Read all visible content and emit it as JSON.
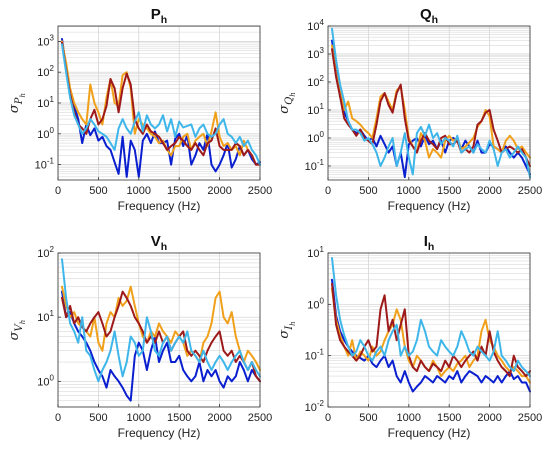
{
  "figure": {
    "panels_order": [
      "P",
      "Q",
      "V",
      "I"
    ]
  },
  "chart_data": [
    {
      "id": "P",
      "type": "line",
      "title": "P",
      "title_sub": "h",
      "ylabel": "σ",
      "ylabel_sub": "P",
      "ylabel_subsub": "h",
      "xlabel": "Frequency (Hz)",
      "xlim": [
        0,
        2500
      ],
      "ylim_log10": [
        -1.5,
        3.5
      ],
      "yscale": "log",
      "xticks": [
        0,
        500,
        1000,
        1500,
        2000,
        2500
      ],
      "ytick_exps": [
        -1,
        0,
        1,
        2,
        3
      ],
      "grid": true,
      "x": [
        50,
        100,
        150,
        200,
        250,
        300,
        350,
        400,
        450,
        500,
        550,
        600,
        650,
        700,
        750,
        800,
        850,
        900,
        950,
        1000,
        1050,
        1100,
        1150,
        1200,
        1250,
        1300,
        1350,
        1400,
        1450,
        1500,
        1550,
        1600,
        1650,
        1700,
        1750,
        1800,
        1850,
        1900,
        1950,
        2000,
        2050,
        2100,
        2150,
        2200,
        2250,
        2300,
        2350,
        2400,
        2450,
        2500
      ],
      "series": [
        {
          "color": "#0a1fcf",
          "values": [
            1200,
            150,
            20,
            8,
            3,
            0.5,
            2,
            0.9,
            1.5,
            0.6,
            0.8,
            0.4,
            0.3,
            0.12,
            0.05,
            0.8,
            0.04,
            0.6,
            0.3,
            0.04,
            0.6,
            1.0,
            0.5,
            1.2,
            0.5,
            0.5,
            0.6,
            0.1,
            0.7,
            1.0,
            0.4,
            0.9,
            0.1,
            0.2,
            0.5,
            0.3,
            1.0,
            0.1,
            0.06,
            0.1,
            0.2,
            0.5,
            0.08,
            0.15,
            0.4,
            0.2,
            0.3,
            0.15,
            0.1,
            0.12
          ]
        },
        {
          "color": "#f0a01a",
          "values": [
            1000,
            200,
            30,
            10,
            5,
            3,
            2,
            40,
            10,
            5,
            2,
            15,
            60,
            10,
            8,
            80,
            100,
            30,
            1.0,
            3,
            2.0,
            1.5,
            1.0,
            0.8,
            0.5,
            0.6,
            0.3,
            0.2,
            0.4,
            0.4,
            0.8,
            1.0,
            0.3,
            0.6,
            0.8,
            1.0,
            0.4,
            1.2,
            5,
            0.8,
            0.4,
            0.5,
            0.3,
            0.4,
            0.2,
            0.6,
            0.3,
            0.2,
            0.1,
            0.1
          ]
        },
        {
          "color": "#9e1a1a",
          "values": [
            900,
            120,
            20,
            5,
            2,
            1.5,
            1,
            3,
            6,
            2,
            3,
            8,
            60,
            30,
            5,
            30,
            90,
            40,
            3,
            1.5,
            1.0,
            2.0,
            1.2,
            1.0,
            0.8,
            0.5,
            0.3,
            0.4,
            0.5,
            0.8,
            0.6,
            0.4,
            0.3,
            0.5,
            0.3,
            0.2,
            0.5,
            0.6,
            1.5,
            0.4,
            0.3,
            0.3,
            0.3,
            0.5,
            0.4,
            0.2,
            0.3,
            0.2,
            0.1,
            0.1
          ]
        },
        {
          "color": "#3fb6ea",
          "values": [
            800,
            100,
            15,
            4,
            2,
            1,
            1.5,
            3,
            2,
            1.2,
            1.0,
            0.8,
            0.5,
            0.3,
            1.5,
            3,
            1.5,
            1.0,
            2.5,
            5,
            1.2,
            4,
            2,
            1.5,
            2,
            4,
            1.2,
            3,
            0.8,
            2.5,
            1.6,
            1.8,
            2.0,
            0.8,
            1.5,
            2.0,
            1.0,
            0.8,
            1.0,
            2.0,
            3,
            1.0,
            0.8,
            0.5,
            0.8,
            0.4,
            0.6,
            0.3,
            0.2,
            0.1
          ]
        }
      ]
    },
    {
      "id": "Q",
      "type": "line",
      "title": "Q",
      "title_sub": "h",
      "ylabel": "σ",
      "ylabel_sub": "Q",
      "ylabel_subsub": "h",
      "xlabel": "Frequency (Hz)",
      "xlim": [
        0,
        2500
      ],
      "ylim_log10": [
        -1.5,
        4
      ],
      "yscale": "log",
      "xticks": [
        0,
        500,
        1000,
        1500,
        2000,
        2500
      ],
      "ytick_exps": [
        -1,
        0,
        1,
        2,
        3,
        4
      ],
      "grid": true,
      "x": [
        50,
        100,
        150,
        200,
        250,
        300,
        350,
        400,
        450,
        500,
        550,
        600,
        650,
        700,
        750,
        800,
        850,
        900,
        950,
        1000,
        1050,
        1100,
        1150,
        1200,
        1250,
        1300,
        1350,
        1400,
        1450,
        1500,
        1550,
        1600,
        1650,
        1700,
        1750,
        1800,
        1850,
        1900,
        1950,
        2000,
        2050,
        2100,
        2150,
        2200,
        2250,
        2300,
        2350,
        2400,
        2450,
        2500
      ],
      "series": [
        {
          "color": "#0a1fcf",
          "values": [
            3000,
            300,
            30,
            8,
            4,
            2,
            1.5,
            2,
            1.2,
            0.8,
            1.0,
            0.5,
            1.2,
            0.6,
            0.3,
            0.5,
            0.1,
            0.3,
            0.04,
            0.6,
            0.8,
            1.0,
            0.5,
            1.2,
            0.6,
            0.8,
            0.4,
            0.8,
            0.3,
            0.8,
            1.0,
            0.8,
            0.4,
            0.8,
            0.5,
            0.3,
            0.8,
            0.3,
            0.3,
            0.6,
            0.5,
            0.4,
            0.3,
            0.5,
            0.3,
            0.2,
            0.3,
            0.2,
            0.1,
            0.05
          ]
        },
        {
          "color": "#f0a01a",
          "values": [
            2000,
            200,
            40,
            10,
            20,
            5,
            4,
            3,
            2,
            1.5,
            1.0,
            5,
            30,
            40,
            20,
            10,
            50,
            70,
            10,
            1.0,
            0.5,
            0.3,
            1.5,
            0.8,
            0.2,
            0.4,
            0.3,
            0.2,
            0.8,
            1.2,
            0.8,
            1.0,
            0.4,
            0.5,
            0.7,
            1.0,
            2.5,
            4,
            10,
            6,
            0.5,
            0.4,
            0.3,
            0.8,
            1.2,
            0.8,
            0.4,
            0.5,
            0.3,
            0.2
          ]
        },
        {
          "color": "#9e1a1a",
          "values": [
            1500,
            150,
            30,
            5,
            3,
            2,
            1.2,
            2,
            1.0,
            0.8,
            0.6,
            3,
            20,
            40,
            15,
            8,
            40,
            80,
            5,
            0.8,
            0.5,
            0.3,
            0.8,
            1.5,
            0.8,
            0.6,
            0.4,
            1.0,
            1.2,
            0.6,
            0.6,
            0.8,
            0.3,
            0.4,
            0.3,
            0.5,
            3,
            4,
            8,
            10,
            2,
            0.8,
            0.3,
            0.4,
            0.5,
            0.4,
            0.3,
            0.4,
            0.2,
            0.1
          ]
        },
        {
          "color": "#3fb6ea",
          "values": [
            8000,
            600,
            80,
            20,
            4,
            2,
            2,
            1.5,
            0.8,
            1.0,
            0.6,
            0.3,
            0.1,
            0.2,
            0.5,
            1.0,
            0.1,
            0.3,
            1.5,
            0.2,
            0.05,
            1.5,
            2.5,
            1.2,
            3,
            1.0,
            1.5,
            0.6,
            1.0,
            0.8,
            0.5,
            1.2,
            0.3,
            0.4,
            0.5,
            0.3,
            0.6,
            0.4,
            0.3,
            0.8,
            0.4,
            0.1,
            0.3,
            0.4,
            0.2,
            0.3,
            0.5,
            0.3,
            0.2,
            0.04
          ]
        }
      ]
    },
    {
      "id": "V",
      "type": "line",
      "title": "V",
      "title_sub": "h",
      "ylabel": "σ",
      "ylabel_sub": "V",
      "ylabel_subsub": "h",
      "xlabel": "Frequency (Hz)",
      "xlim": [
        0,
        2500
      ],
      "ylim_log10": [
        -0.4,
        2
      ],
      "yscale": "log",
      "xticks": [
        0,
        500,
        1000,
        1500,
        2000,
        2500
      ],
      "ytick_exps": [
        0,
        1,
        2
      ],
      "grid": true,
      "x": [
        50,
        100,
        150,
        200,
        250,
        300,
        350,
        400,
        450,
        500,
        550,
        600,
        650,
        700,
        750,
        800,
        850,
        900,
        950,
        1000,
        1050,
        1100,
        1150,
        1200,
        1250,
        1300,
        1350,
        1400,
        1450,
        1500,
        1550,
        1600,
        1650,
        1700,
        1750,
        1800,
        1850,
        1900,
        1950,
        2000,
        2050,
        2100,
        2150,
        2200,
        2250,
        2300,
        2350,
        2400,
        2450,
        2500
      ],
      "series": [
        {
          "color": "#0a1fcf",
          "values": [
            25,
            10,
            12,
            8,
            6,
            5,
            4,
            3,
            2,
            1.5,
            1.2,
            0.8,
            1.5,
            1.2,
            1.0,
            0.8,
            0.6,
            0.5,
            2.5,
            4,
            3,
            1.5,
            3,
            5,
            2,
            3,
            4,
            2,
            2,
            2.5,
            1.5,
            1.2,
            1.0,
            1.2,
            2,
            1.0,
            1.5,
            1.2,
            1.5,
            1.0,
            0.8,
            1.2,
            1.0,
            1.2,
            2,
            1.5,
            1.0,
            1.5,
            1.2,
            1.0
          ]
        },
        {
          "color": "#f0a01a",
          "values": [
            30,
            15,
            10,
            12,
            8,
            7,
            6,
            5,
            10,
            4,
            3,
            8,
            12,
            10,
            20,
            15,
            18,
            30,
            15,
            8,
            5,
            4,
            6,
            5,
            8,
            6,
            5,
            4,
            6,
            5,
            4,
            2.5,
            3,
            2.5,
            2,
            4,
            5,
            8,
            20,
            25,
            10,
            8,
            12,
            5,
            3,
            2,
            3,
            2.5,
            2,
            1.5
          ]
        },
        {
          "color": "#9e1a1a",
          "values": [
            20,
            10,
            15,
            8,
            10,
            7,
            6,
            8,
            10,
            12,
            8,
            5,
            6,
            10,
            15,
            25,
            20,
            15,
            10,
            8,
            6,
            4,
            5,
            4,
            6,
            4,
            5,
            3,
            4,
            5,
            6,
            3,
            2.5,
            3,
            2.5,
            2,
            3,
            4,
            5,
            6,
            3,
            2.5,
            3,
            2,
            2.5,
            2,
            1.5,
            2,
            1.2,
            1.0
          ]
        },
        {
          "color": "#3fb6ea",
          "values": [
            80,
            20,
            8,
            6,
            4,
            10,
            3,
            2.5,
            1.5,
            1.0,
            1.5,
            2,
            3,
            6,
            2.5,
            1.2,
            2,
            5,
            4,
            2.5,
            3,
            10,
            6,
            3,
            2.5,
            4,
            5,
            3,
            4,
            5,
            4,
            6,
            3,
            2.5,
            2,
            3,
            2,
            1.5,
            2,
            2.5,
            2,
            1.5,
            2,
            2.5,
            3,
            2,
            1.5,
            2,
            1.5,
            1.2
          ]
        }
      ]
    },
    {
      "id": "I",
      "type": "line",
      "title": "I",
      "title_sub": "h",
      "ylabel": "σ",
      "ylabel_sub": "I",
      "ylabel_subsub": "h",
      "xlabel": "Frequency (Hz)",
      "xlim": [
        0,
        2500
      ],
      "ylim_log10": [
        -2,
        1
      ],
      "yscale": "log",
      "xticks": [
        0,
        500,
        1000,
        1500,
        2000,
        2500
      ],
      "ytick_exps": [
        -2,
        -1,
        0,
        1
      ],
      "grid": true,
      "x": [
        50,
        100,
        150,
        200,
        250,
        300,
        350,
        400,
        450,
        500,
        550,
        600,
        650,
        700,
        750,
        800,
        850,
        900,
        950,
        1000,
        1050,
        1100,
        1150,
        1200,
        1250,
        1300,
        1350,
        1400,
        1450,
        1500,
        1550,
        1600,
        1650,
        1700,
        1750,
        1800,
        1850,
        1900,
        1950,
        2000,
        2050,
        2100,
        2150,
        2200,
        2250,
        2300,
        2350,
        2400,
        2450,
        2500
      ],
      "series": [
        {
          "color": "#0a1fcf",
          "values": [
            3,
            0.6,
            0.3,
            0.2,
            0.15,
            0.12,
            0.1,
            0.09,
            0.08,
            0.1,
            0.07,
            0.06,
            0.08,
            0.1,
            0.06,
            0.08,
            0.04,
            0.03,
            0.05,
            0.03,
            0.02,
            0.025,
            0.03,
            0.04,
            0.035,
            0.03,
            0.04,
            0.035,
            0.03,
            0.04,
            0.035,
            0.05,
            0.03,
            0.04,
            0.05,
            0.045,
            0.04,
            0.03,
            0.04,
            0.035,
            0.03,
            0.04,
            0.03,
            0.04,
            0.05,
            0.035,
            0.04,
            0.03,
            0.03,
            0.02
          ]
        },
        {
          "color": "#f0a01a",
          "values": [
            2,
            0.5,
            0.25,
            0.15,
            0.1,
            0.2,
            0.08,
            0.12,
            0.1,
            0.08,
            0.15,
            0.1,
            0.12,
            0.2,
            0.3,
            0.4,
            0.8,
            0.5,
            0.15,
            0.08,
            0.06,
            0.1,
            0.08,
            0.06,
            0.05,
            0.08,
            0.06,
            0.04,
            0.05,
            0.06,
            0.05,
            0.07,
            0.08,
            0.1,
            0.06,
            0.08,
            0.1,
            0.3,
            0.5,
            0.2,
            0.15,
            0.1,
            0.08,
            0.06,
            0.05,
            0.06,
            0.05,
            0.04,
            0.04,
            0.03
          ]
        },
        {
          "color": "#9e1a1a",
          "values": [
            2.5,
            0.4,
            0.2,
            0.15,
            0.12,
            0.1,
            0.08,
            0.1,
            0.15,
            0.2,
            0.12,
            0.15,
            0.8,
            1.5,
            0.3,
            0.5,
            0.2,
            0.4,
            0.8,
            0.1,
            0.06,
            0.05,
            0.08,
            0.06,
            0.05,
            0.07,
            0.06,
            0.05,
            0.08,
            0.06,
            0.1,
            0.08,
            0.06,
            0.08,
            0.1,
            0.12,
            0.08,
            0.15,
            0.1,
            0.3,
            0.12,
            0.08,
            0.06,
            0.05,
            0.04,
            0.1,
            0.06,
            0.05,
            0.04,
            0.05
          ]
        },
        {
          "color": "#3fb6ea",
          "values": [
            8,
            1.5,
            0.5,
            0.25,
            0.15,
            0.1,
            0.12,
            0.2,
            0.15,
            0.1,
            0.08,
            0.12,
            0.15,
            0.1,
            0.2,
            0.3,
            0.4,
            0.1,
            0.15,
            0.1,
            0.12,
            0.2,
            0.5,
            0.3,
            0.15,
            0.12,
            0.1,
            0.2,
            0.15,
            0.12,
            0.1,
            0.15,
            0.3,
            0.2,
            0.12,
            0.1,
            0.15,
            0.12,
            0.1,
            0.08,
            0.12,
            0.3,
            0.1,
            0.08,
            0.06,
            0.05,
            0.08,
            0.06,
            0.05,
            0.04
          ]
        }
      ]
    }
  ]
}
